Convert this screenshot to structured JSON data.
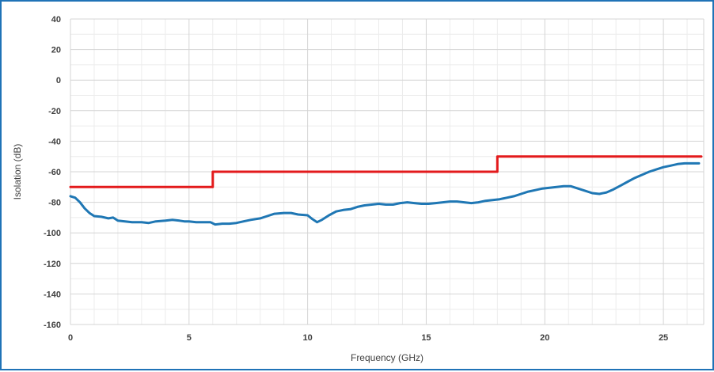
{
  "chart_data": {
    "type": "line",
    "title": "",
    "xlabel": "Frequency (GHz)",
    "ylabel": "Isolation (dB)",
    "xlim": [
      0,
      26.7
    ],
    "ylim": [
      -160,
      40
    ],
    "x_ticks": [
      0,
      5,
      10,
      15,
      20,
      25
    ],
    "y_ticks": [
      40,
      20,
      0,
      -20,
      -40,
      -60,
      -80,
      -100,
      -120,
      -140,
      -160
    ],
    "x_tick_labels": [
      "0",
      "5",
      "10",
      "15",
      "20",
      "25"
    ],
    "y_tick_labels": [
      "40",
      "20",
      "0",
      "-20",
      "-40",
      "-60",
      "-80",
      "-100",
      "-120",
      "-140",
      "-160"
    ],
    "grid": true,
    "legend": "none",
    "series": [
      {
        "color": "#1f77b4",
        "x": [
          0,
          0.2,
          0.4,
          0.6,
          0.8,
          1.0,
          1.3,
          1.6,
          1.8,
          2.0,
          2.3,
          2.6,
          3.0,
          3.3,
          3.6,
          4.0,
          4.3,
          4.6,
          4.8,
          5.0,
          5.3,
          5.6,
          5.9,
          6.1,
          6.4,
          6.7,
          7.0,
          7.3,
          7.6,
          8.0,
          8.3,
          8.6,
          9.0,
          9.3,
          9.6,
          10.0,
          10.2,
          10.4,
          10.6,
          10.9,
          11.2,
          11.5,
          11.8,
          12.1,
          12.4,
          12.7,
          13.0,
          13.3,
          13.6,
          13.9,
          14.2,
          14.5,
          14.8,
          15.1,
          15.4,
          15.7,
          16.0,
          16.3,
          16.6,
          16.9,
          17.2,
          17.5,
          17.8,
          18.1,
          18.4,
          18.7,
          19.0,
          19.3,
          19.6,
          19.9,
          20.2,
          20.5,
          20.8,
          21.1,
          21.4,
          21.7,
          22.0,
          22.3,
          22.6,
          22.9,
          23.2,
          23.5,
          23.8,
          24.1,
          24.4,
          24.7,
          25.0,
          25.3,
          25.6,
          25.9,
          26.2,
          26.5
        ],
        "y": [
          -76,
          -77,
          -80,
          -84,
          -87,
          -89,
          -89.5,
          -90.5,
          -90,
          -92,
          -92.5,
          -93,
          -93,
          -93.5,
          -92.5,
          -92,
          -91.5,
          -92,
          -92.5,
          -92.5,
          -93,
          -93,
          -93,
          -94.5,
          -94,
          -94,
          -93.5,
          -92.5,
          -91.5,
          -90.5,
          -89,
          -87.5,
          -87,
          -87,
          -88,
          -88.5,
          -91,
          -93,
          -91.5,
          -88.5,
          -86,
          -85,
          -84.5,
          -83,
          -82,
          -81.5,
          -81,
          -81.5,
          -81.5,
          -80.5,
          -80,
          -80.5,
          -81,
          -81,
          -80.5,
          -80,
          -79.5,
          -79.5,
          -80,
          -80.5,
          -80,
          -79,
          -78.5,
          -78,
          -77,
          -76,
          -74.5,
          -73,
          -72,
          -71,
          -70.5,
          -70,
          -69.5,
          -69.5,
          -71,
          -72.5,
          -74,
          -74.5,
          -73.5,
          -71.5,
          -69,
          -66.5,
          -64,
          -62,
          -60,
          -58.5,
          -57,
          -56,
          -55,
          -54.5,
          -54.5,
          -54.5
        ]
      },
      {
        "color": "#e31a1c",
        "x": [
          0,
          6,
          6,
          18,
          18,
          26.6
        ],
        "y": [
          -70,
          -70,
          -60,
          -60,
          -50,
          -50
        ]
      }
    ]
  }
}
